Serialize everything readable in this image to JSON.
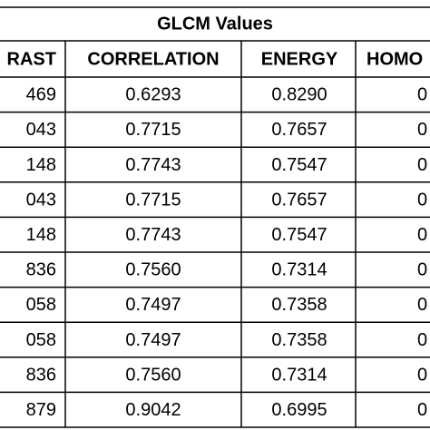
{
  "table": {
    "title": "GLCM Values",
    "header": [
      "RAST",
      "CORRELATION",
      "ENERGY",
      "HOMO"
    ],
    "rows": [
      [
        "469",
        "0.6293",
        "0.8290",
        "0"
      ],
      [
        "043",
        "0.7715",
        "0.7657",
        "0"
      ],
      [
        "148",
        "0.7743",
        "0.7547",
        "0"
      ],
      [
        "043",
        "0.7715",
        "0.7657",
        "0"
      ],
      [
        "148",
        "0.7743",
        "0.7547",
        "0"
      ],
      [
        "836",
        "0.7560",
        "0.7314",
        "0"
      ],
      [
        "058",
        "0.7497",
        "0.7358",
        "0"
      ],
      [
        "058",
        "0.7497",
        "0.7358",
        "0"
      ],
      [
        "836",
        "0.7560",
        "0.7314",
        "0"
      ],
      [
        "879",
        "0.9042",
        "0.6995",
        "0"
      ]
    ]
  }
}
